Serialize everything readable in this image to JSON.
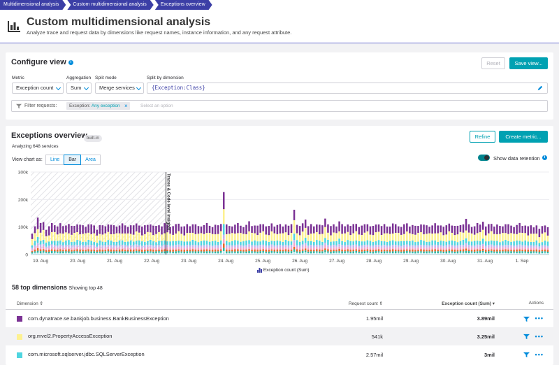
{
  "breadcrumbs": [
    "Multidimensional analysis",
    "Custom multidimensional analysis",
    "Exceptions overview"
  ],
  "header": {
    "title": "Custom multidimensional analysis",
    "subtitle": "Analyze trace and request data by dimensions like request names, instance information, and any request attribute."
  },
  "configure": {
    "title": "Configure view",
    "reset_label": "Reset",
    "save_label": "Save view...",
    "metric_label": "Metric",
    "metric_value": "Exception count",
    "aggregation_label": "Aggregation",
    "aggregation_value": "Sum",
    "split_mode_label": "Split mode",
    "split_mode_value": "Merge services",
    "split_dim_label": "Split by dimension",
    "split_dim_value": "{Exception:Class}",
    "filter_label": "Filter requests:",
    "filter_chip_key": "Exception:",
    "filter_chip_value": "Any exception",
    "filter_placeholder": "Select an option"
  },
  "overview": {
    "title": "Exceptions overview",
    "badge": "built-in",
    "analyzing": "Analyzing 648 services",
    "refine_label": "Refine",
    "create_label": "Create metric...",
    "view_as": "View chart as:",
    "chart_types": [
      "Line",
      "Bar",
      "Area"
    ],
    "active_chart_type": "Bar",
    "retention_label": "Show data retention",
    "retention_marker": "Traces & Code level insights",
    "legend_label": "Exception count (Sum)"
  },
  "chart_data": {
    "type": "bar",
    "stacked": true,
    "ylim": [
      0,
      300000
    ],
    "y_ticks": [
      "0",
      "100k",
      "200k",
      "300k"
    ],
    "x_ticks": [
      "19. Aug",
      "20. Aug",
      "21. Aug",
      "22. Aug",
      "23. Aug",
      "24. Aug",
      "25. Aug",
      "26. Aug",
      "27. Aug",
      "28. Aug",
      "29. Aug",
      "30. Aug",
      "31. Aug",
      "1. Sep"
    ],
    "ylabel": "",
    "xlabel": "",
    "legend": "Exception count (Sum)",
    "grid": true,
    "bars_per_day": 7,
    "totals": [
      75000,
      105000,
      135000,
      112000,
      118000,
      92000,
      102000,
      112000,
      108000,
      104000,
      112000,
      102000,
      108000,
      112000,
      102000,
      104000,
      112000,
      108000,
      104000,
      102000,
      112000,
      108000,
      104000,
      92000,
      108000,
      104000,
      102000,
      112000,
      108000,
      104000,
      102000,
      108000,
      112000,
      104000,
      102000,
      108000,
      104000,
      112000,
      108000,
      102000,
      104000,
      108000,
      112000,
      104000,
      102000,
      108000,
      104000,
      112000,
      108000,
      102000,
      104000,
      108000,
      112000,
      104000,
      102000,
      108000,
      104000,
      112000,
      108000,
      102000,
      104000,
      108000,
      112000,
      104000,
      102000,
      108000,
      104000,
      112000,
      232000,
      108000,
      102000,
      104000,
      110000,
      112000,
      104000,
      102000,
      108000,
      118000,
      104000,
      108000,
      104000,
      108000,
      112000,
      104000,
      102000,
      112000,
      104000,
      108000,
      108000,
      102000,
      112000,
      104000,
      108000,
      165000,
      110000,
      102000,
      112000,
      130000,
      104000,
      108000,
      102000,
      112000,
      108000,
      104000,
      132000,
      112000,
      102000,
      108000,
      104000,
      122000,
      108000,
      102000,
      112000,
      104000,
      108000,
      112000,
      102000,
      104000,
      108000,
      112000,
      104000,
      102000,
      108000,
      112000,
      104000,
      108000,
      102000,
      104000,
      112000,
      108000,
      104000,
      102000,
      108000,
      112000,
      104000,
      108000,
      102000,
      104000,
      112000,
      108000,
      104000,
      102000,
      108000,
      112000,
      104000,
      108000,
      102000,
      104000,
      112000,
      108000,
      104000,
      102000,
      108000,
      112000,
      128000,
      108000,
      102000,
      104000,
      112000,
      108000,
      122000,
      102000,
      108000,
      112000,
      104000,
      108000,
      102000,
      104000,
      112000,
      108000,
      104000,
      102000,
      108000,
      112000,
      104000,
      108000,
      102000,
      104000,
      100000,
      108000,
      92000,
      102000,
      108000,
      100000
    ],
    "retention_boundary_index": 48,
    "series": [
      {
        "name": "com.dynatrace.se.bankjob.business.BankBusinessException",
        "color": "#7b3294",
        "share": 0.28
      },
      {
        "name": "org.mvel2.PropertyAccessException",
        "color": "#fdf190",
        "share": 0.26
      },
      {
        "name": "com.microsoft.sqlserver.jdbc.SQLServerException",
        "color": "#4fd5e0",
        "share": 0.14
      },
      {
        "name": "",
        "color": "#c2b4ee",
        "share": 0.08
      },
      {
        "name": "",
        "color": "#f5a3c7",
        "share": 0.07
      },
      {
        "name": "",
        "color": "#e8672a",
        "share": 0.06
      },
      {
        "name": "",
        "color": "#2fb69f",
        "share": 0.06
      },
      {
        "name": "",
        "color": "#b9ecf2",
        "share": 0.05
      }
    ]
  },
  "dimensions": {
    "title": "58 top dimensions",
    "showing": "Showing top 48",
    "columns": {
      "dimension": "Dimension",
      "request_count": "Request count",
      "exception_count": "Exception count (Sum)",
      "actions": "Actions"
    },
    "rows": [
      {
        "name": "com.dynatrace.se.bankjob.business.BankBusinessException",
        "color": "#7b3294",
        "requests": "1.95mil",
        "exceptions": "3.89mil"
      },
      {
        "name": "org.mvel2.PropertyAccessException",
        "color": "#fdf190",
        "requests": "541k",
        "exceptions": "3.25mil"
      },
      {
        "name": "com.microsoft.sqlserver.jdbc.SQLServerException",
        "color": "#4fd5e0",
        "requests": "2.57mil",
        "exceptions": "3mil"
      }
    ]
  }
}
